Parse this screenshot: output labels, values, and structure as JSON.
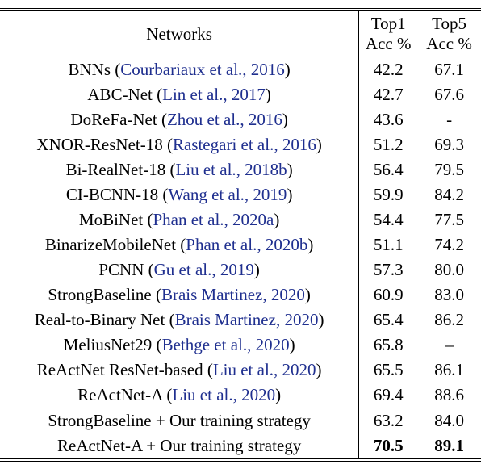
{
  "table": {
    "header": {
      "network": "Networks",
      "top1": [
        "Top1",
        "Acc %"
      ],
      "top5": [
        "Top5",
        "Acc %"
      ]
    },
    "rows": [
      {
        "name": "BNNs (",
        "cite": "Courbariaux et al., 2016",
        "close": ")",
        "top1": "42.2",
        "top5": "67.1"
      },
      {
        "name": "ABC-Net (",
        "cite": "Lin et al., 2017",
        "close": ")",
        "top1": "42.7",
        "top5": "67.6"
      },
      {
        "name": "DoReFa-Net (",
        "cite": "Zhou et al., 2016",
        "close": ")",
        "top1": "43.6",
        "top5": "-"
      },
      {
        "name": "XNOR-ResNet-18 (",
        "cite": "Rastegari et al., 2016",
        "close": ")",
        "top1": "51.2",
        "top5": "69.3"
      },
      {
        "name": "Bi-RealNet-18 (",
        "cite": "Liu et al., 2018b",
        "close": ")",
        "top1": "56.4",
        "top5": "79.5"
      },
      {
        "name": "CI-BCNN-18 (",
        "cite": "Wang et al., 2019",
        "close": ")",
        "top1": "59.9",
        "top5": "84.2"
      },
      {
        "name": "MoBiNet (",
        "cite": "Phan et al., 2020a",
        "close": ")",
        "top1": "54.4",
        "top5": "77.5"
      },
      {
        "name": "BinarizeMobileNet (",
        "cite": "Phan et al., 2020b",
        "close": ")",
        "top1": "51.1",
        "top5": "74.2"
      },
      {
        "name": "PCNN  (",
        "cite": "Gu et al., 2019",
        "close": ")",
        "top1": "57.3",
        "top5": "80.0"
      },
      {
        "name": "StrongBaseline (",
        "cite": "Brais Martinez, 2020",
        "close": ")",
        "top1": "60.9",
        "top5": "83.0"
      },
      {
        "name": "Real-to-Binary Net (",
        "cite": "Brais Martinez, 2020",
        "close": ")",
        "top1": "65.4",
        "top5": "86.2"
      },
      {
        "name": "MeliusNet29 (",
        "cite": "Bethge et al., 2020",
        "close": ")",
        "top1": "65.8",
        "top5": "–"
      },
      {
        "name": "ReActNet ResNet-based (",
        "cite": "Liu et al., 2020",
        "close": ")",
        "top1": "65.5",
        "top5": "86.1"
      },
      {
        "name": "ReActNet-A (",
        "cite": "Liu et al., 2020",
        "close": ")",
        "top1": "69.4",
        "top5": "88.6"
      },
      {
        "name": "StrongBaseline + Our training strategy",
        "top1": "63.2",
        "top5": "84.0"
      },
      {
        "name": "ReActNet-A + Our training strategy",
        "top1": "70.5",
        "top5": "89.1",
        "bold": true
      }
    ],
    "split_before": 14
  }
}
